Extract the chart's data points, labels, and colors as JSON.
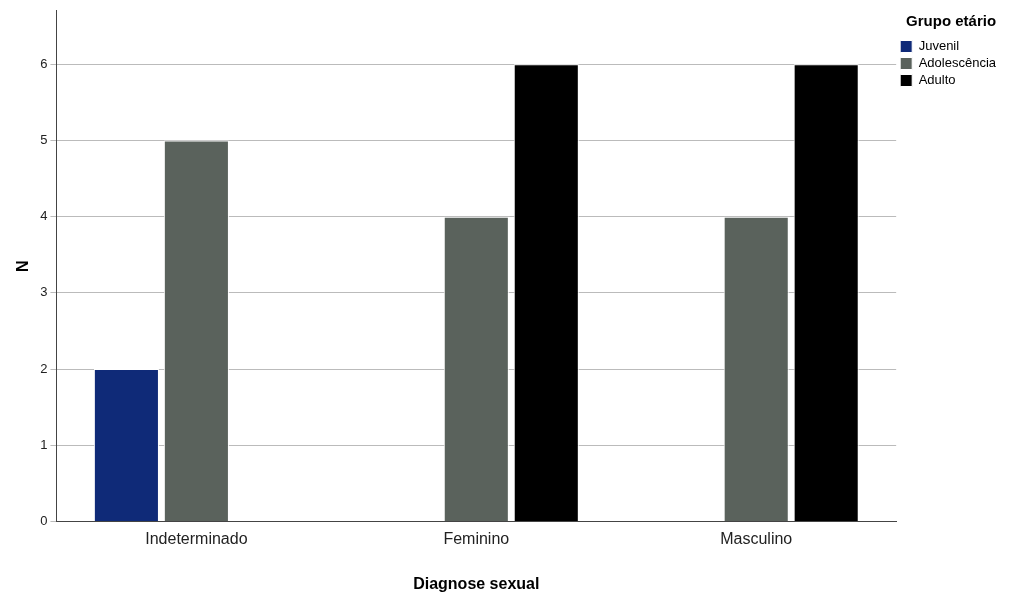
{
  "chart_data": {
    "type": "bar",
    "xlabel": "Diagnose sexual",
    "ylabel": "N",
    "legend_title": "Grupo etário",
    "categories": [
      "Indeterminado",
      "Feminino",
      "Masculino"
    ],
    "series": [
      {
        "name": "Juvenil",
        "color": "#0f2a78",
        "values": [
          2,
          null,
          null
        ]
      },
      {
        "name": "Adolescência",
        "color": "#5a625c",
        "values": [
          5,
          4,
          4
        ]
      },
      {
        "name": "Adulto",
        "color": "#000000",
        "values": [
          null,
          6,
          6
        ]
      }
    ],
    "ylim": [
      0,
      6.7
    ],
    "yticks": [
      0,
      1,
      2,
      3,
      4,
      5,
      6
    ],
    "grid": "y",
    "legend": "top right"
  }
}
